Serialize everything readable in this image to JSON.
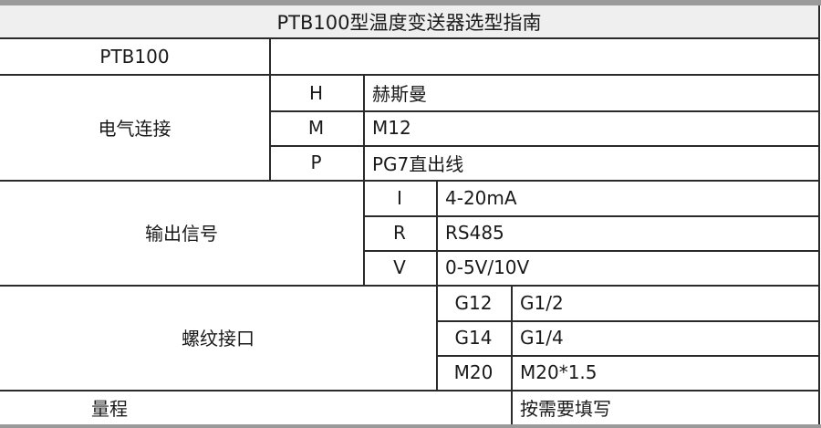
{
  "title": "PTB100型温度变送器选型指南",
  "model": "PTB100",
  "electrical": {
    "label": "电气连接",
    "options": [
      {
        "code": "H",
        "desc": "赫斯曼"
      },
      {
        "code": "M",
        "desc": "M12"
      },
      {
        "code": "P",
        "desc": "PG7直出线"
      }
    ]
  },
  "output": {
    "label": "输出信号",
    "options": [
      {
        "code": "I",
        "desc": "4-20mA"
      },
      {
        "code": "R",
        "desc": "RS485"
      },
      {
        "code": "V",
        "desc": "0-5V/10V"
      }
    ]
  },
  "thread": {
    "label": "螺纹接口",
    "options": [
      {
        "code": "G12",
        "desc": "G1/2"
      },
      {
        "code": "G14",
        "desc": "G1/4"
      },
      {
        "code": "M20",
        "desc": "M20*1.5"
      }
    ]
  },
  "range": {
    "label": "量程",
    "desc": "按需要填写"
  }
}
